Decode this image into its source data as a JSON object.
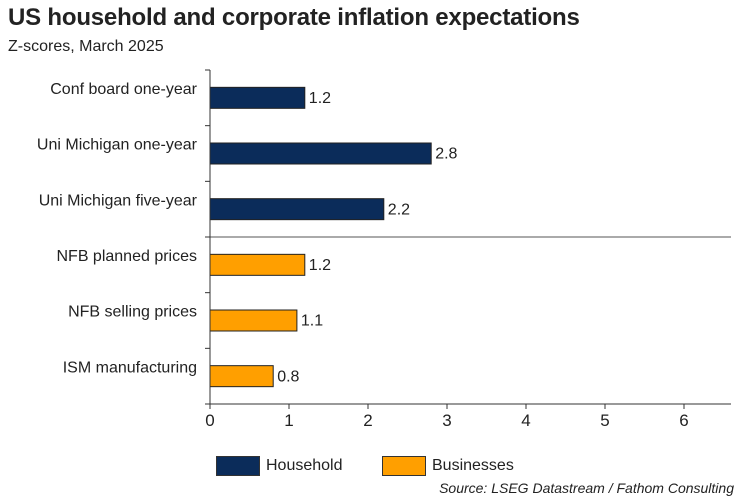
{
  "header": {
    "title": "US household and corporate inflation expectations",
    "subtitle": "Z-scores, March 2025"
  },
  "chart_data": {
    "type": "bar",
    "orientation": "horizontal",
    "title": "US household and corporate inflation expectations",
    "subtitle": "Z-scores, March 2025",
    "categories": [
      "Conf board one-year",
      "Uni Michigan one-year",
      "Uni Michigan five-year",
      "NFB planned prices",
      "NFB selling prices",
      "ISM manufacturing"
    ],
    "values": [
      1.2,
      2.8,
      2.2,
      1.2,
      1.1,
      0.8
    ],
    "value_labels": [
      "1.2",
      "2.8",
      "2.2",
      "1.2",
      "1.1",
      "0.8"
    ],
    "groups": [
      "Household",
      "Household",
      "Household",
      "Businesses",
      "Businesses",
      "Businesses"
    ],
    "series": [
      {
        "name": "Household",
        "color": "#0b2c5a"
      },
      {
        "name": "Businesses",
        "color": "#ff9f00"
      }
    ],
    "xlim": [
      0,
      6.6
    ],
    "xticks": [
      "0",
      "1",
      "2",
      "3",
      "4",
      "5",
      "6"
    ],
    "xlabel": "",
    "ylabel": "",
    "legend_position": "bottom",
    "grid": false
  },
  "legend": {
    "items": [
      {
        "label": "Household",
        "color": "#0b2c5a"
      },
      {
        "label": "Businesses",
        "color": "#ff9f00"
      }
    ]
  },
  "footer": {
    "source": "Source: LSEG Datastream / Fathom Consulting"
  }
}
